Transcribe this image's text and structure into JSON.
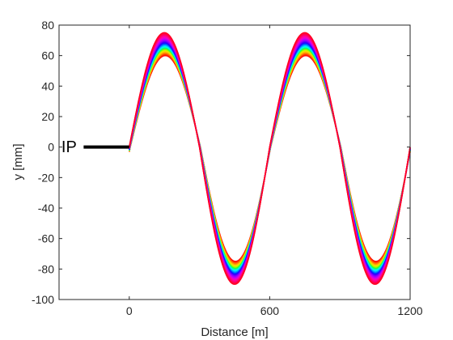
{
  "chart_data": {
    "type": "line",
    "title": "",
    "xlabel": "Distance [m]",
    "ylabel": "y [mm]",
    "xlim": [
      -300,
      1200
    ],
    "ylim": [
      -100,
      80
    ],
    "xticks": [
      0,
      600,
      1200
    ],
    "xtick_labels": [
      "0",
      "600",
      "1200"
    ],
    "yticks": [
      -100,
      -80,
      -60,
      -40,
      -20,
      0,
      20,
      40,
      60,
      80
    ],
    "ytick_labels": [
      "-100",
      "-80",
      "-60",
      "-40",
      "-20",
      "0",
      "20",
      "40",
      "60",
      "80"
    ],
    "grid": false,
    "legend": "none",
    "annotation": {
      "text": "IP",
      "x": -290,
      "y": 0
    },
    "ip_line": {
      "x": [
        -195,
        0
      ],
      "y": [
        0,
        0
      ],
      "color": "#000000"
    },
    "wave": {
      "start_x": 0,
      "end_x": 1200,
      "period_m": 600,
      "peak_x": [
        150,
        750
      ],
      "trough_x": [
        450,
        1050
      ],
      "curve_count": 24,
      "upper_peak_range": [
        60,
        75
      ],
      "lower_trough_range": [
        -75,
        -90
      ],
      "colors": [
        "#ff0000",
        "#ff3300",
        "#ff6600",
        "#ff9900",
        "#ffcc00",
        "#e6e600",
        "#99ff00",
        "#33ff33",
        "#00ff99",
        "#00ffee",
        "#00ccff",
        "#0088ff",
        "#0044ff",
        "#2200ff",
        "#5500ff",
        "#8800ff",
        "#aa00ff",
        "#cc00ee",
        "#ee00cc",
        "#ff00aa",
        "#ff0088",
        "#ff0066",
        "#ff0044",
        "#ff0022"
      ]
    }
  }
}
